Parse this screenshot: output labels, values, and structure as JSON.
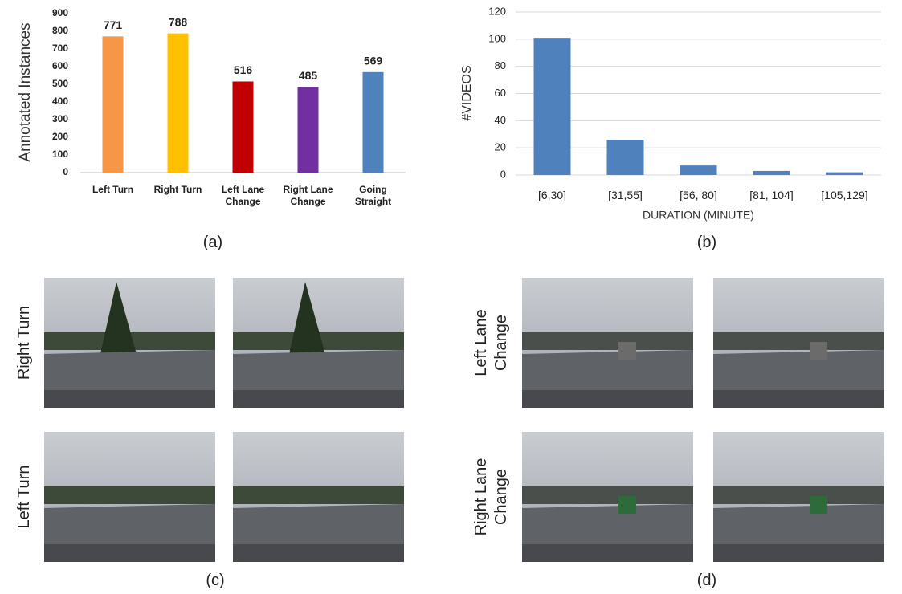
{
  "chart_data": [
    {
      "type": "bar",
      "y_label": "Annotated Instances",
      "categories": [
        "Left Turn",
        "Right Turn",
        "Left Lane Change",
        "Right Lane Change",
        "Going Straight"
      ],
      "values": [
        771,
        788,
        516,
        485,
        569
      ],
      "colors": [
        "#f79646",
        "#ffc000",
        "#c00000",
        "#7030a0",
        "#4f81bd"
      ],
      "ylim": [
        0,
        900
      ],
      "yticks": [
        0,
        100,
        200,
        300,
        400,
        500,
        600,
        700,
        800,
        900
      ],
      "grid": false,
      "data_labels": true
    },
    {
      "type": "bar",
      "x_label": "DURATION (MINUTE)",
      "y_label": "#VIDEOS",
      "categories": [
        "[6,30]",
        "[31,55]",
        "[56, 80]",
        "[81, 104]",
        "[105,129]"
      ],
      "values": [
        101,
        26,
        7,
        3,
        2
      ],
      "color": "#4f81bd",
      "ylim": [
        0,
        120
      ],
      "yticks": [
        0,
        20,
        40,
        60,
        80,
        100,
        120
      ],
      "grid": true,
      "data_labels": false
    }
  ],
  "figure": {
    "panel_labels": [
      "(a)",
      "(b)",
      "(c)",
      "(d)"
    ],
    "row_labels": [
      "Right Turn",
      "Left Turn",
      "Left Lane Change",
      "Right Lane Change"
    ]
  }
}
